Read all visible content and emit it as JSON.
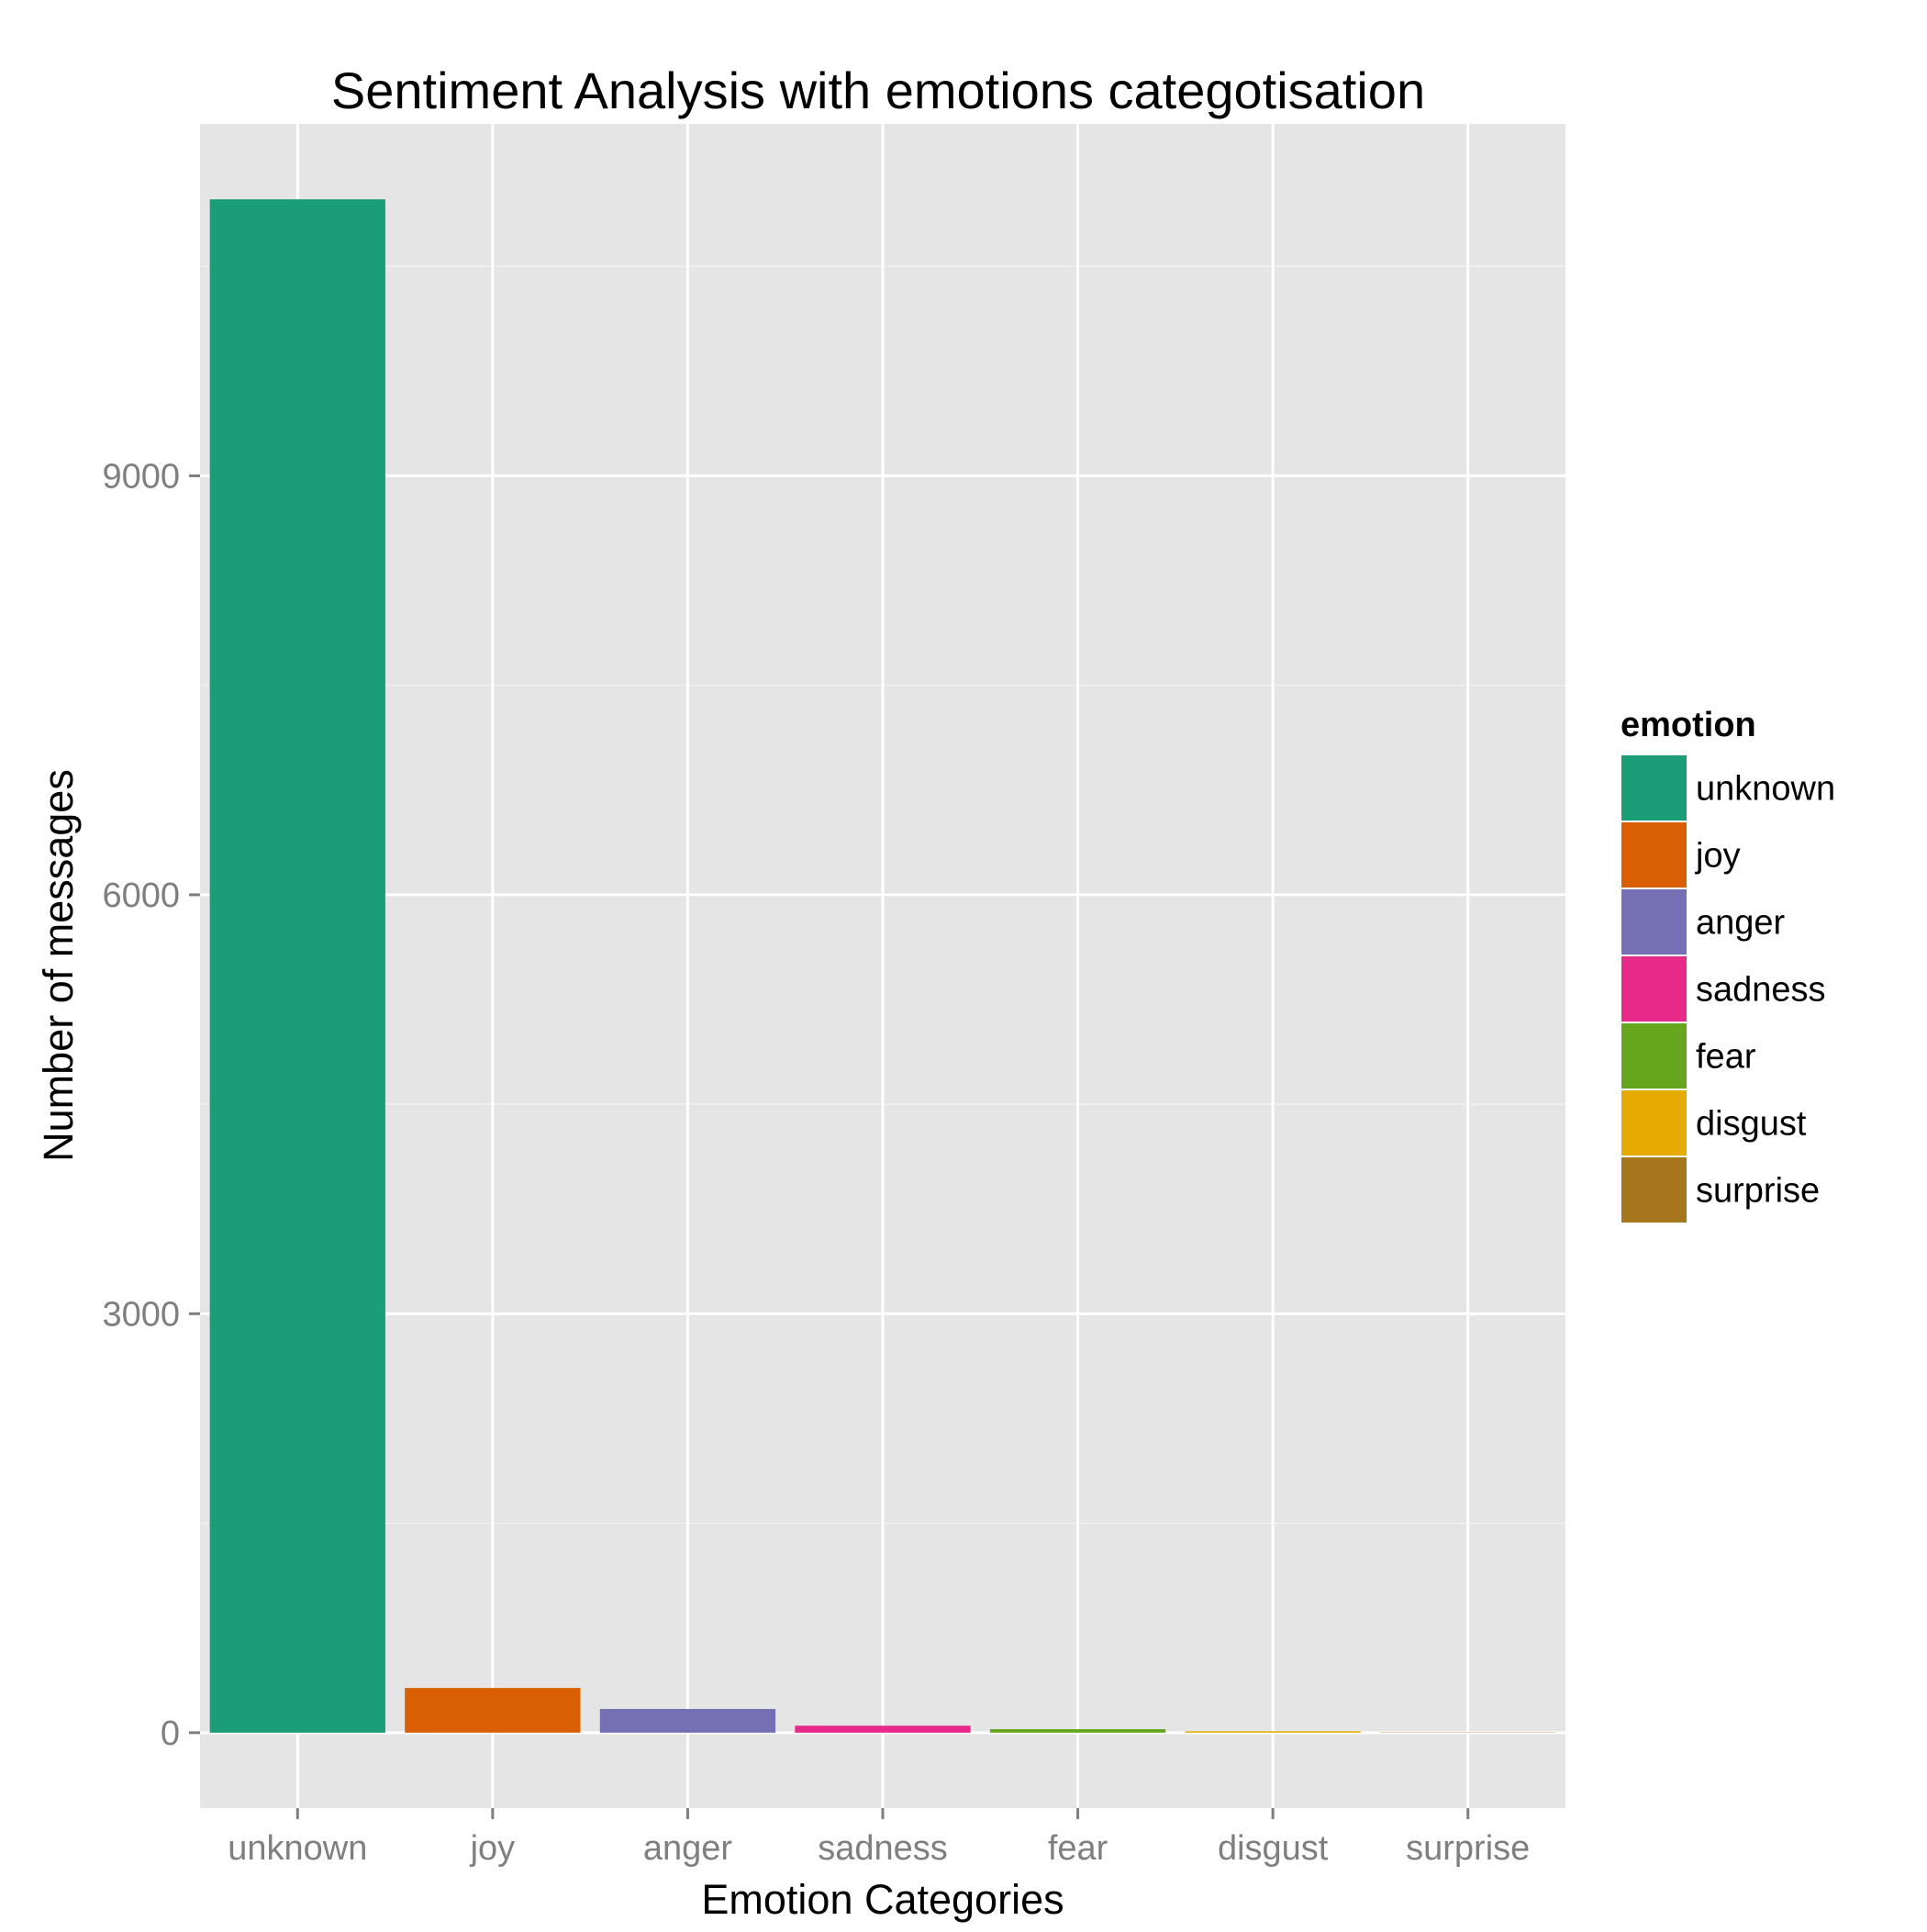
{
  "chart_data": {
    "type": "bar",
    "title": "Sentiment Analysis with emotions categotisation",
    "xlabel": "Emotion Categories",
    "ylabel": "Number of messages",
    "categories": [
      "unknown",
      "joy",
      "anger",
      "sadness",
      "fear",
      "disgust",
      "surprise"
    ],
    "values": [
      10980,
      320,
      170,
      50,
      25,
      10,
      2
    ],
    "colors": [
      "#1b9e77",
      "#d95f02",
      "#7570b3",
      "#e7298a",
      "#66a61e",
      "#e6ab02",
      "#a6761d"
    ],
    "ylim": [
      -540,
      11520
    ],
    "yticks": [
      0,
      3000,
      6000,
      9000
    ],
    "ytick_labels": [
      "0",
      "3000",
      "6000",
      "9000"
    ],
    "grid": true,
    "legend": {
      "title": "emotion",
      "position": "right",
      "entries": [
        "unknown",
        "joy",
        "anger",
        "sadness",
        "fear",
        "disgust",
        "surprise"
      ]
    }
  }
}
